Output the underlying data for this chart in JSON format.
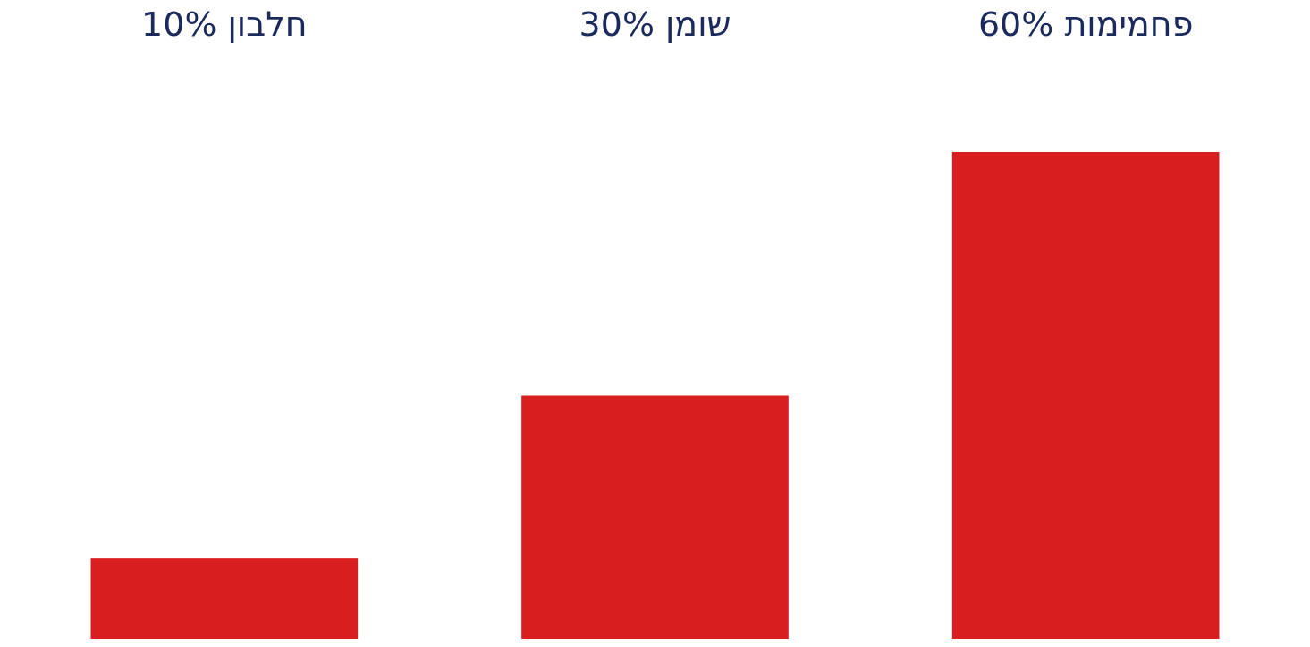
{
  "chart_data": {
    "type": "bar",
    "categories": [
      "חלבון",
      "שומן",
      "פחמימות"
    ],
    "values": [
      10,
      30,
      60
    ],
    "value_labels": [
      "10%",
      "30%",
      "60%"
    ],
    "color": "#d81e1e"
  }
}
